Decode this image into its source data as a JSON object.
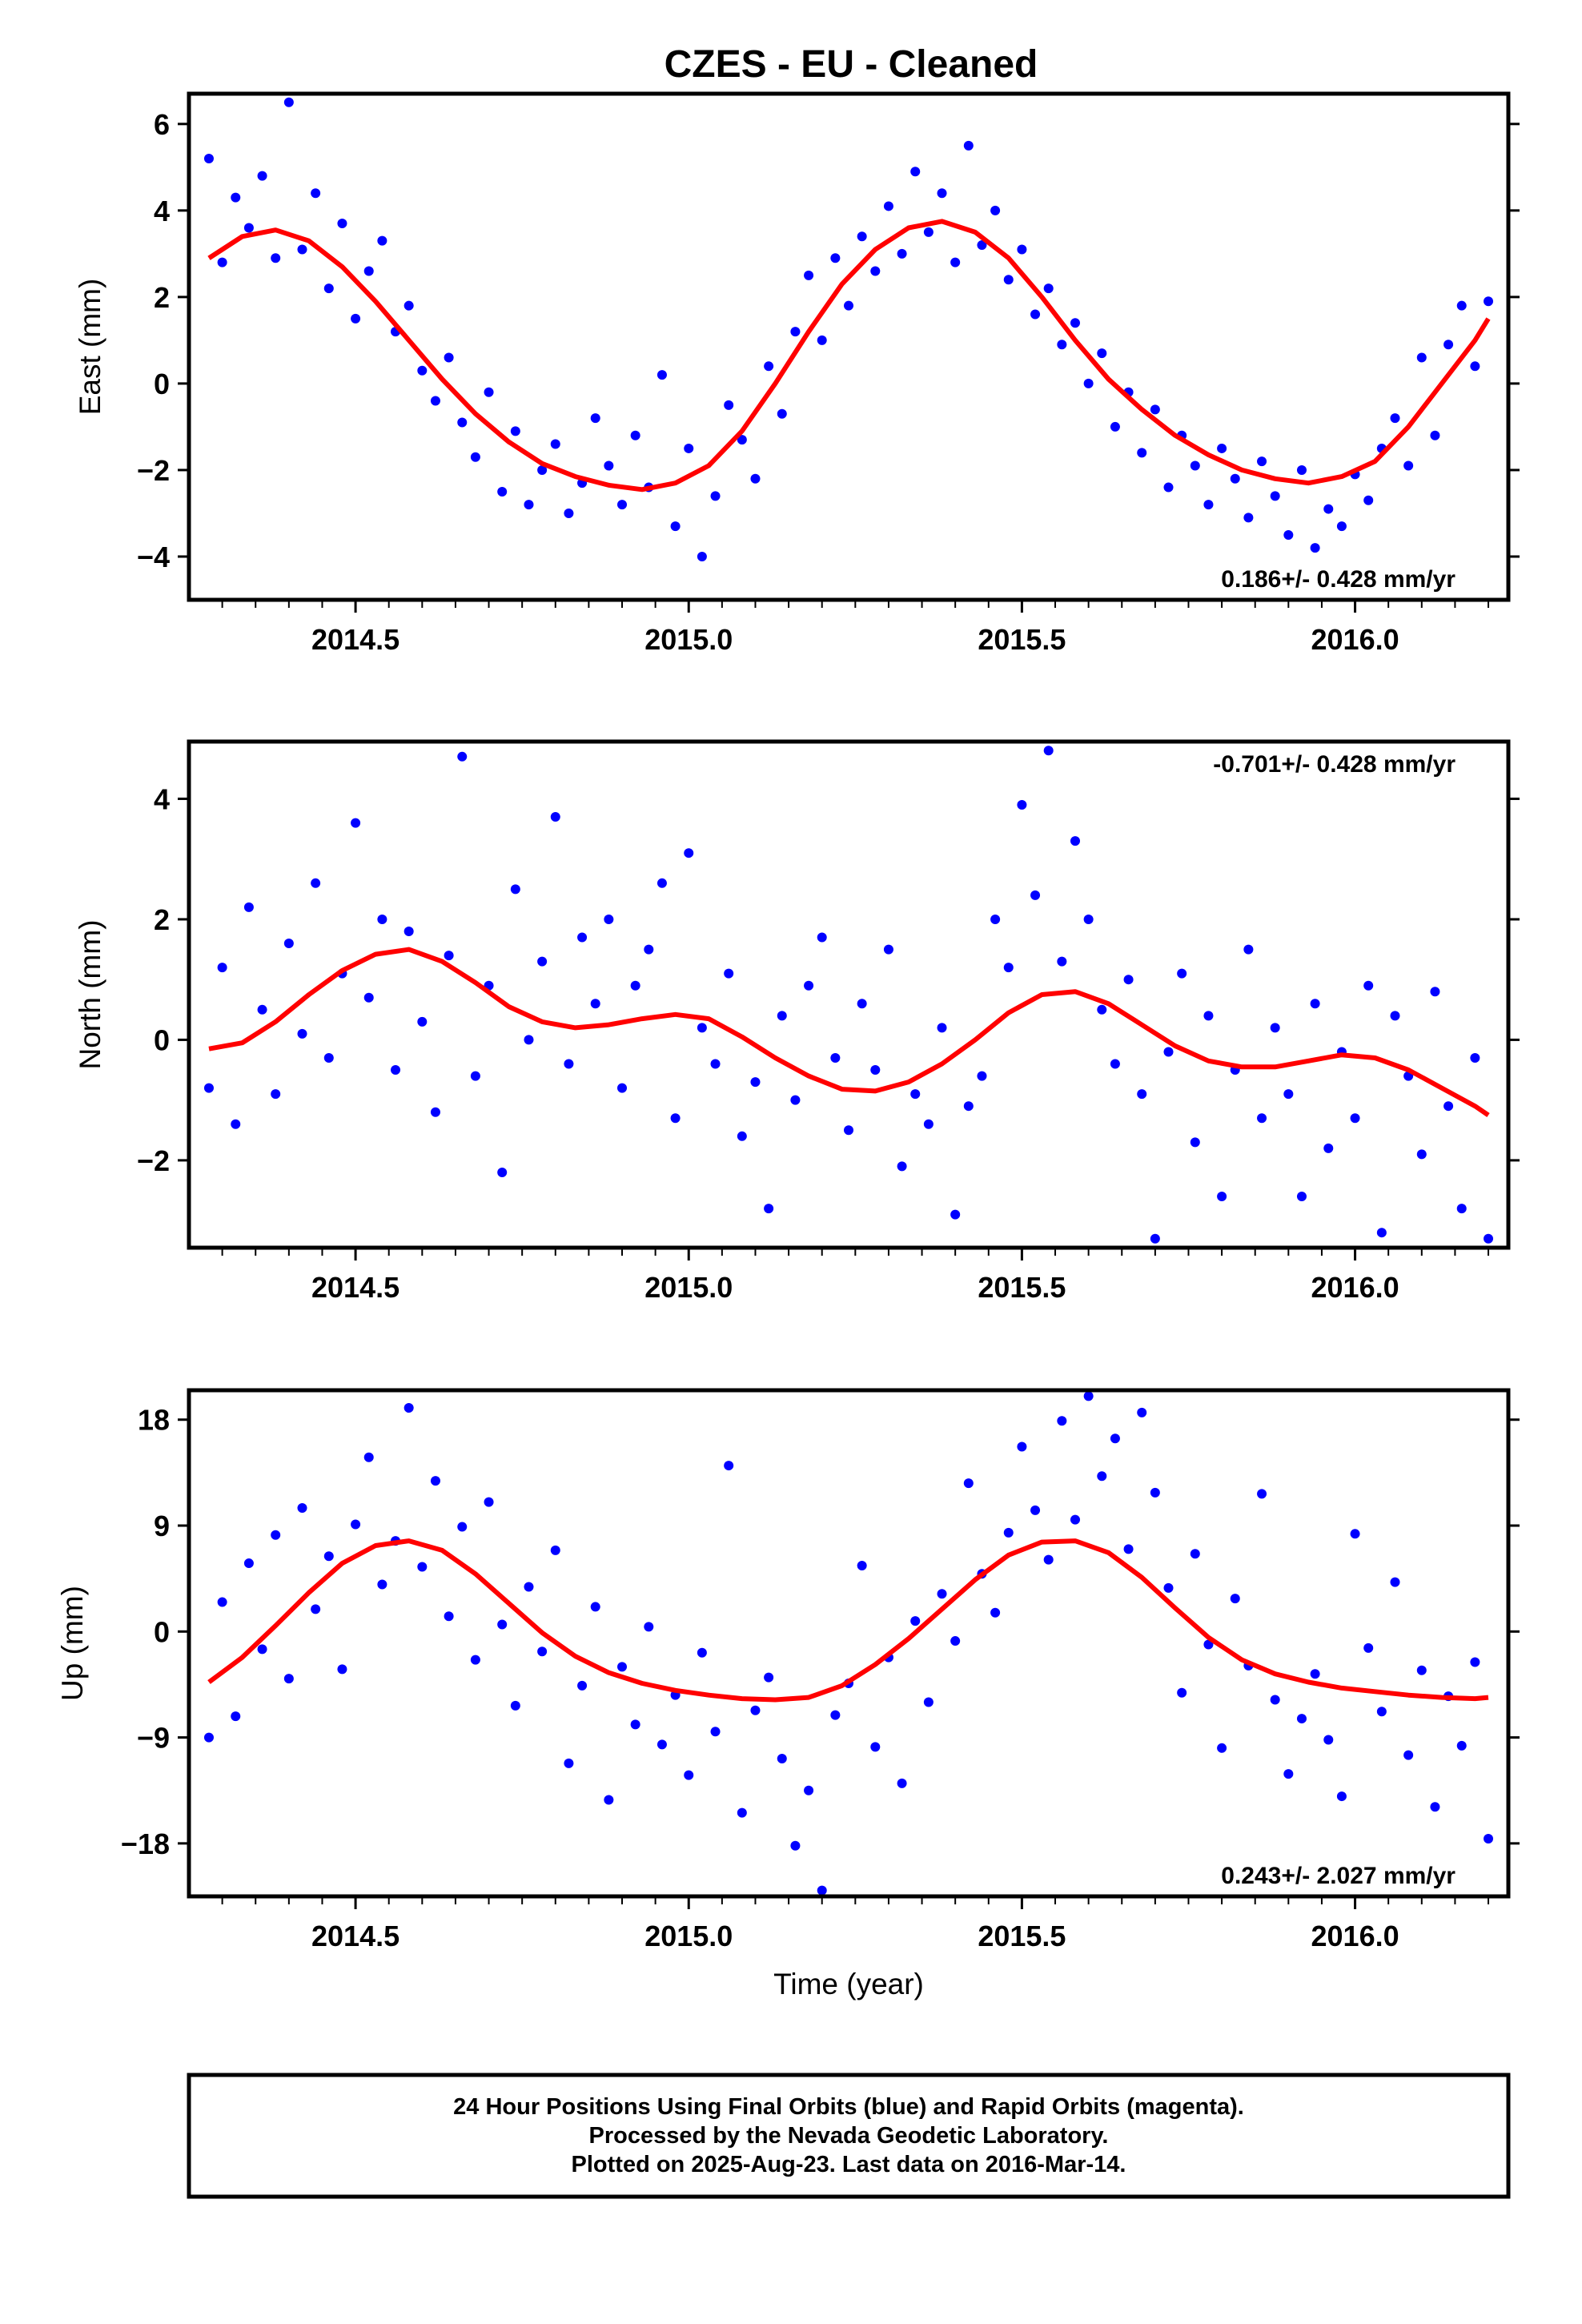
{
  "title": "CZES  - EU - Cleaned",
  "colors": {
    "final_orbits": "#0000ff",
    "rapid_orbits": "#ff00ff",
    "model": "#ff0000",
    "frame": "#000000"
  },
  "footer": {
    "line1": "24 Hour Positions Using Final Orbits (blue) and Rapid Orbits (magenta).",
    "line2": "Processed by the Nevada Geodetic Laboratory.",
    "line3": "Plotted on 2025-Aug-23. Last data on 2016-Mar-14."
  },
  "chart_data": [
    {
      "type": "scatter",
      "component": "east",
      "ylabel": "East (mm)",
      "xlabel": "",
      "xlim": [
        2014.25,
        2016.23
      ],
      "ylim": [
        -5.0,
        6.7
      ],
      "xticks": [
        2014.5,
        2015.0,
        2015.5,
        2016.0
      ],
      "xtick_labels": [
        "2014.5",
        "2015.0",
        "2015.5",
        "2016.0"
      ],
      "yticks": [
        -4,
        -2,
        0,
        2,
        4,
        6
      ],
      "ytick_labels": [
        "−4",
        "−2",
        "0",
        "2",
        "4",
        "6"
      ],
      "rate_text": "0.186+/- 0.428 mm/yr",
      "rate_position": "bottom-right",
      "grid": false,
      "model": {
        "x": [
          2014.28,
          2014.33,
          2014.38,
          2014.43,
          2014.48,
          2014.53,
          2014.58,
          2014.63,
          2014.68,
          2014.73,
          2014.78,
          2014.83,
          2014.88,
          2014.93,
          2014.98,
          2015.03,
          2015.08,
          2015.13,
          2015.18,
          2015.23,
          2015.28,
          2015.33,
          2015.38,
          2015.43,
          2015.48,
          2015.53,
          2015.58,
          2015.63,
          2015.68,
          2015.73,
          2015.78,
          2015.83,
          2015.88,
          2015.93,
          2015.98,
          2016.03,
          2016.08,
          2016.13,
          2016.18,
          2016.2
        ],
        "y": [
          2.9,
          3.4,
          3.55,
          3.3,
          2.7,
          1.9,
          1.0,
          0.1,
          -0.7,
          -1.35,
          -1.85,
          -2.15,
          -2.35,
          -2.45,
          -2.3,
          -1.9,
          -1.1,
          0.0,
          1.2,
          2.3,
          3.1,
          3.6,
          3.75,
          3.5,
          2.9,
          2.0,
          1.0,
          0.1,
          -0.6,
          -1.2,
          -1.65,
          -2.0,
          -2.2,
          -2.3,
          -2.15,
          -1.8,
          -1.0,
          0.0,
          1.0,
          1.5
        ]
      },
      "points": {
        "x": [
          2014.28,
          2014.3,
          2014.32,
          2014.34,
          2014.36,
          2014.38,
          2014.4,
          2014.42,
          2014.44,
          2014.46,
          2014.48,
          2014.5,
          2014.52,
          2014.54,
          2014.56,
          2014.58,
          2014.6,
          2014.62,
          2014.64,
          2014.66,
          2014.68,
          2014.7,
          2014.72,
          2014.74,
          2014.76,
          2014.78,
          2014.8,
          2014.82,
          2014.84,
          2014.86,
          2014.88,
          2014.9,
          2014.92,
          2014.94,
          2014.96,
          2014.98,
          2015.0,
          2015.02,
          2015.04,
          2015.06,
          2015.08,
          2015.1,
          2015.12,
          2015.14,
          2015.16,
          2015.18,
          2015.2,
          2015.22,
          2015.24,
          2015.26,
          2015.28,
          2015.3,
          2015.32,
          2015.34,
          2015.36,
          2015.38,
          2015.4,
          2015.42,
          2015.44,
          2015.46,
          2015.48,
          2015.5,
          2015.52,
          2015.54,
          2015.56,
          2015.58,
          2015.6,
          2015.62,
          2015.64,
          2015.66,
          2015.68,
          2015.7,
          2015.72,
          2015.74,
          2015.76,
          2015.78,
          2015.8,
          2015.82,
          2015.84,
          2015.86,
          2015.88,
          2015.9,
          2015.92,
          2015.94,
          2015.96,
          2015.98,
          2016.0,
          2016.02,
          2016.04,
          2016.06,
          2016.08,
          2016.1,
          2016.12,
          2016.14,
          2016.16,
          2016.18,
          2016.2
        ],
        "y": [
          5.2,
          2.8,
          4.3,
          3.6,
          4.8,
          2.9,
          6.5,
          3.1,
          4.4,
          2.2,
          3.7,
          1.5,
          2.6,
          3.3,
          1.2,
          1.8,
          0.3,
          -0.4,
          0.6,
          -0.9,
          -1.7,
          -0.2,
          -2.5,
          -1.1,
          -2.8,
          -2.0,
          -1.4,
          -3.0,
          -2.3,
          -0.8,
          -1.9,
          -2.8,
          -1.2,
          -2.4,
          0.2,
          -3.3,
          -1.5,
          -4.0,
          -2.6,
          -0.5,
          -1.3,
          -2.2,
          0.4,
          -0.7,
          1.2,
          2.5,
          1.0,
          2.9,
          1.8,
          3.4,
          2.6,
          4.1,
          3.0,
          4.9,
          3.5,
          4.4,
          2.8,
          5.5,
          3.2,
          4.0,
          2.4,
          3.1,
          1.6,
          2.2,
          0.9,
          1.4,
          0.0,
          0.7,
          -1.0,
          -0.2,
          -1.6,
          -0.6,
          -2.4,
          -1.2,
          -1.9,
          -2.8,
          -1.5,
          -2.2,
          -3.1,
          -1.8,
          -2.6,
          -3.5,
          -2.0,
          -3.8,
          -2.9,
          -3.3,
          -2.1,
          -2.7,
          -1.5,
          -0.8,
          -1.9,
          0.6,
          -1.2,
          0.9,
          1.8,
          0.4,
          1.9
        ]
      }
    },
    {
      "type": "scatter",
      "component": "north",
      "ylabel": "North (mm)",
      "xlabel": "",
      "xlim": [
        2014.25,
        2016.23
      ],
      "ylim": [
        -3.45,
        4.95
      ],
      "xticks": [
        2014.5,
        2015.0,
        2015.5,
        2016.0
      ],
      "xtick_labels": [
        "2014.5",
        "2015.0",
        "2015.5",
        "2016.0"
      ],
      "yticks": [
        -2,
        0,
        2,
        4
      ],
      "ytick_labels": [
        "−2",
        "0",
        "2",
        "4"
      ],
      "rate_text": "-0.701+/- 0.428 mm/yr",
      "rate_position": "top-right",
      "grid": false,
      "model": {
        "x": [
          2014.28,
          2014.33,
          2014.38,
          2014.43,
          2014.48,
          2014.53,
          2014.58,
          2014.63,
          2014.68,
          2014.73,
          2014.78,
          2014.83,
          2014.88,
          2014.93,
          2014.98,
          2015.03,
          2015.08,
          2015.13,
          2015.18,
          2015.23,
          2015.28,
          2015.33,
          2015.38,
          2015.43,
          2015.48,
          2015.53,
          2015.58,
          2015.63,
          2015.68,
          2015.73,
          2015.78,
          2015.83,
          2015.88,
          2015.93,
          2015.98,
          2016.03,
          2016.08,
          2016.13,
          2016.18,
          2016.2
        ],
        "y": [
          -0.15,
          -0.05,
          0.3,
          0.75,
          1.15,
          1.42,
          1.5,
          1.3,
          0.95,
          0.55,
          0.3,
          0.2,
          0.25,
          0.35,
          0.42,
          0.35,
          0.05,
          -0.3,
          -0.6,
          -0.82,
          -0.85,
          -0.7,
          -0.4,
          0.0,
          0.45,
          0.75,
          0.8,
          0.6,
          0.25,
          -0.1,
          -0.35,
          -0.45,
          -0.45,
          -0.35,
          -0.25,
          -0.3,
          -0.5,
          -0.8,
          -1.1,
          -1.25
        ]
      },
      "points": {
        "x": [
          2014.28,
          2014.3,
          2014.32,
          2014.34,
          2014.36,
          2014.38,
          2014.4,
          2014.42,
          2014.44,
          2014.46,
          2014.48,
          2014.5,
          2014.52,
          2014.54,
          2014.56,
          2014.58,
          2014.6,
          2014.62,
          2014.64,
          2014.66,
          2014.68,
          2014.7,
          2014.72,
          2014.74,
          2014.76,
          2014.78,
          2014.8,
          2014.82,
          2014.84,
          2014.86,
          2014.88,
          2014.9,
          2014.92,
          2014.94,
          2014.96,
          2014.98,
          2015.0,
          2015.02,
          2015.04,
          2015.06,
          2015.08,
          2015.1,
          2015.12,
          2015.14,
          2015.16,
          2015.18,
          2015.2,
          2015.22,
          2015.24,
          2015.26,
          2015.28,
          2015.3,
          2015.32,
          2015.34,
          2015.36,
          2015.38,
          2015.4,
          2015.42,
          2015.44,
          2015.46,
          2015.48,
          2015.5,
          2015.52,
          2015.54,
          2015.56,
          2015.58,
          2015.6,
          2015.62,
          2015.64,
          2015.66,
          2015.68,
          2015.7,
          2015.72,
          2015.74,
          2015.76,
          2015.78,
          2015.8,
          2015.82,
          2015.84,
          2015.86,
          2015.88,
          2015.9,
          2015.92,
          2015.94,
          2015.96,
          2015.98,
          2016.0,
          2016.02,
          2016.04,
          2016.06,
          2016.08,
          2016.1,
          2016.12,
          2016.14,
          2016.16,
          2016.18,
          2016.2
        ],
        "y": [
          -0.8,
          1.2,
          -1.4,
          2.2,
          0.5,
          -0.9,
          1.6,
          0.1,
          2.6,
          -0.3,
          1.1,
          3.6,
          0.7,
          2.0,
          -0.5,
          1.8,
          0.3,
          -1.2,
          1.4,
          4.7,
          -0.6,
          0.9,
          -2.2,
          2.5,
          0.0,
          1.3,
          3.7,
          -0.4,
          1.7,
          0.6,
          2.0,
          -0.8,
          0.9,
          1.5,
          2.6,
          -1.3,
          3.1,
          0.2,
          -0.4,
          1.1,
          -1.6,
          -0.7,
          -2.8,
          0.4,
          -1.0,
          0.9,
          1.7,
          -0.3,
          -1.5,
          0.6,
          -0.5,
          1.5,
          -2.1,
          -0.9,
          -1.4,
          0.2,
          -2.9,
          -1.1,
          -0.6,
          2.0,
          1.2,
          3.9,
          2.4,
          4.8,
          1.3,
          3.3,
          2.0,
          0.5,
          -0.4,
          1.0,
          -0.9,
          -3.3,
          -0.2,
          1.1,
          -1.7,
          0.4,
          -2.6,
          -0.5,
          1.5,
          -1.3,
          0.2,
          -0.9,
          -2.6,
          0.6,
          -1.8,
          -0.2,
          -1.3,
          0.9,
          -3.2,
          0.4,
          -0.6,
          -1.9,
          0.8,
          -1.1,
          -2.8,
          -0.3,
          -3.3
        ]
      }
    },
    {
      "type": "scatter",
      "component": "up",
      "ylabel": "Up (mm)",
      "xlabel": "Time (year)",
      "xlim": [
        2014.25,
        2016.23
      ],
      "ylim": [
        -22.5,
        20.5
      ],
      "xticks": [
        2014.5,
        2015.0,
        2015.5,
        2016.0
      ],
      "xtick_labels": [
        "2014.5",
        "2015.0",
        "2015.5",
        "2016.0"
      ],
      "yticks": [
        -18,
        -9,
        0,
        9,
        18
      ],
      "ytick_labels": [
        "−18",
        "−9",
        "0",
        "9",
        "18"
      ],
      "rate_text": "0.243+/- 2.027 mm/yr",
      "rate_position": "bottom-right",
      "grid": false,
      "model": {
        "x": [
          2014.28,
          2014.33,
          2014.38,
          2014.43,
          2014.48,
          2014.53,
          2014.58,
          2014.63,
          2014.68,
          2014.73,
          2014.78,
          2014.83,
          2014.88,
          2014.93,
          2014.98,
          2015.03,
          2015.08,
          2015.13,
          2015.18,
          2015.23,
          2015.28,
          2015.33,
          2015.38,
          2015.43,
          2015.48,
          2015.53,
          2015.58,
          2015.63,
          2015.68,
          2015.73,
          2015.78,
          2015.83,
          2015.88,
          2015.93,
          2015.98,
          2016.03,
          2016.08,
          2016.13,
          2016.18,
          2016.2
        ],
        "y": [
          -4.3,
          -2.2,
          0.5,
          3.3,
          5.8,
          7.3,
          7.7,
          6.9,
          4.9,
          2.4,
          -0.1,
          -2.1,
          -3.5,
          -4.4,
          -5.0,
          -5.4,
          -5.7,
          -5.8,
          -5.6,
          -4.6,
          -2.8,
          -0.6,
          1.9,
          4.4,
          6.5,
          7.6,
          7.7,
          6.7,
          4.6,
          2.0,
          -0.5,
          -2.4,
          -3.6,
          -4.3,
          -4.8,
          -5.1,
          -5.4,
          -5.6,
          -5.7,
          -5.6
        ]
      },
      "points": {
        "x": [
          2014.28,
          2014.3,
          2014.32,
          2014.34,
          2014.36,
          2014.38,
          2014.4,
          2014.42,
          2014.44,
          2014.46,
          2014.48,
          2014.5,
          2014.52,
          2014.54,
          2014.56,
          2014.58,
          2014.6,
          2014.62,
          2014.64,
          2014.66,
          2014.68,
          2014.7,
          2014.72,
          2014.74,
          2014.76,
          2014.78,
          2014.8,
          2014.82,
          2014.84,
          2014.86,
          2014.88,
          2014.9,
          2014.92,
          2014.94,
          2014.96,
          2014.98,
          2015.0,
          2015.02,
          2015.04,
          2015.06,
          2015.08,
          2015.1,
          2015.12,
          2015.14,
          2015.16,
          2015.18,
          2015.2,
          2015.22,
          2015.24,
          2015.26,
          2015.28,
          2015.3,
          2015.32,
          2015.34,
          2015.36,
          2015.38,
          2015.4,
          2015.42,
          2015.44,
          2015.46,
          2015.48,
          2015.5,
          2015.52,
          2015.54,
          2015.56,
          2015.58,
          2015.6,
          2015.62,
          2015.64,
          2015.66,
          2015.68,
          2015.7,
          2015.72,
          2015.74,
          2015.76,
          2015.78,
          2015.8,
          2015.82,
          2015.84,
          2015.86,
          2015.88,
          2015.9,
          2015.92,
          2015.94,
          2015.96,
          2015.98,
          2016.0,
          2016.02,
          2016.04,
          2016.06,
          2016.08,
          2016.1,
          2016.12,
          2016.14,
          2016.16,
          2016.18,
          2016.2
        ],
        "y": [
          -9.0,
          2.5,
          -7.2,
          5.8,
          -1.5,
          8.2,
          -4.0,
          10.5,
          1.9,
          6.4,
          -3.2,
          9.1,
          14.8,
          4.0,
          7.7,
          19.0,
          5.5,
          12.8,
          1.3,
          8.9,
          -2.4,
          11.0,
          0.6,
          -6.3,
          3.8,
          -1.7,
          6.9,
          -11.2,
          -4.6,
          2.1,
          -14.3,
          -3.0,
          -7.9,
          0.4,
          -9.6,
          -5.4,
          -12.2,
          -1.8,
          -8.5,
          14.1,
          -15.4,
          -6.7,
          -3.9,
          -10.8,
          -18.2,
          -13.5,
          -22.0,
          -7.1,
          -4.4,
          5.6,
          -9.8,
          -2.2,
          -12.9,
          0.9,
          -6.0,
          3.2,
          -0.8,
          12.6,
          4.9,
          1.6,
          8.4,
          15.7,
          10.3,
          6.1,
          17.9,
          9.5,
          20.0,
          13.2,
          16.4,
          7.0,
          18.6,
          11.8,
          3.7,
          -5.2,
          6.6,
          -1.1,
          -9.9,
          2.8,
          -2.9,
          11.7,
          -5.8,
          -12.1,
          -7.4,
          -3.6,
          -9.2,
          -14.0,
          8.3,
          -1.4,
          -6.8,
          4.2,
          -10.5,
          -3.3,
          -14.9,
          -5.5,
          -9.7,
          -2.6,
          -17.6
        ]
      }
    }
  ]
}
